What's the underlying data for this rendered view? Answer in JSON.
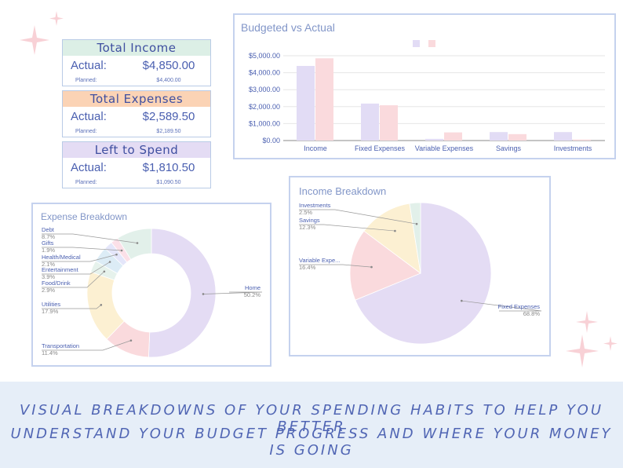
{
  "colors": {
    "accent_blue": "#4a5fb0",
    "income_header": "#dcefe6",
    "expenses_header": "#fbd3b5",
    "left_header": "#e4dcf4",
    "budgeted_bar": "#e2dcf5",
    "actual_bar": "#fadadd",
    "sparkle": "#f6c6cc",
    "banner_bg": "#e6eef8"
  },
  "summary_cards": [
    {
      "title": "Total Income",
      "actual_label": "Actual:",
      "actual_value": "$4,850.00",
      "planned_label": "Planned:",
      "planned_value": "$4,400.00",
      "header_color": "#dcefe6"
    },
    {
      "title": "Total Expenses",
      "actual_label": "Actual:",
      "actual_value": "$2,589.50",
      "planned_label": "Planned:",
      "planned_value": "$2,189.50",
      "header_color": "#fbd3b5"
    },
    {
      "title": "Left to Spend",
      "actual_label": "Actual:",
      "actual_value": "$1,810.50",
      "planned_label": "Planned:",
      "planned_value": "$1,090.50",
      "header_color": "#e4dcf4"
    }
  ],
  "chart_data": [
    {
      "type": "bar",
      "title": "Budgeted vs Actual",
      "categories": [
        "Income",
        "Fixed Expenses",
        "Variable Expenses",
        "Savings",
        "Investments"
      ],
      "series": [
        {
          "values": [
            4400,
            2180,
            100,
            500,
            500
          ],
          "color": "#e2dcf5"
        },
        {
          "values": [
            4850,
            2080,
            480,
            380,
            60
          ],
          "color": "#fadadd"
        }
      ],
      "ylim": [
        0,
        5000
      ],
      "yticks": [
        0,
        1000,
        2000,
        3000,
        4000,
        5000
      ],
      "ytick_labels": [
        "$0.00",
        "$1,000.00",
        "$2,000.00",
        "$3,000.00",
        "$4,000.00",
        "$5,000.00"
      ],
      "grid": true,
      "legend": "top-center"
    },
    {
      "type": "pie",
      "variant": "donut",
      "title": "Expense Breakdown",
      "slices": [
        {
          "label": "Home",
          "value": 50.2,
          "pct": "50.2%",
          "color": "#e4dcf4"
        },
        {
          "label": "Transportation",
          "value": 11.4,
          "pct": "11.4%",
          "color": "#fadadd"
        },
        {
          "label": "Utilities",
          "value": 17.9,
          "pct": "17.9%",
          "color": "#fcf0d2"
        },
        {
          "label": "Food/Drink",
          "value": 2.9,
          "pct": "2.9%",
          "color": "#e6f2ec"
        },
        {
          "label": "Entertainment",
          "value": 3.9,
          "pct": "3.9%",
          "color": "#dcecf6"
        },
        {
          "label": "Health/Medical",
          "value": 2.1,
          "pct": "2.1%",
          "color": "#e4e6fa"
        },
        {
          "label": "Gifts",
          "value": 1.9,
          "pct": "1.9%",
          "color": "#fbe0e8"
        },
        {
          "label": "Debt",
          "value": 8.7,
          "pct": "8.7%",
          "color": "#e2f0ea"
        }
      ]
    },
    {
      "type": "pie",
      "title": "Income Breakdown",
      "slices": [
        {
          "label": "Fixed Expenses",
          "value": 68.8,
          "pct": "68.8%",
          "color": "#e4dcf4"
        },
        {
          "label": "Variable Expe...",
          "value": 16.4,
          "pct": "16.4%",
          "color": "#fadadd"
        },
        {
          "label": "Savings",
          "value": 12.3,
          "pct": "12.3%",
          "color": "#fcf0d2"
        },
        {
          "label": "Investments",
          "value": 2.5,
          "pct": "2.5%",
          "color": "#e2f0ea"
        }
      ]
    }
  ],
  "banner": {
    "line1": "VISUAL BREAKDOWNS OF YOUR SPENDING HABITS TO HELP YOU BETTER",
    "line2": "UNDERSTAND YOUR BUDGET PROGRESS AND WHERE YOUR MONEY IS GOING"
  }
}
